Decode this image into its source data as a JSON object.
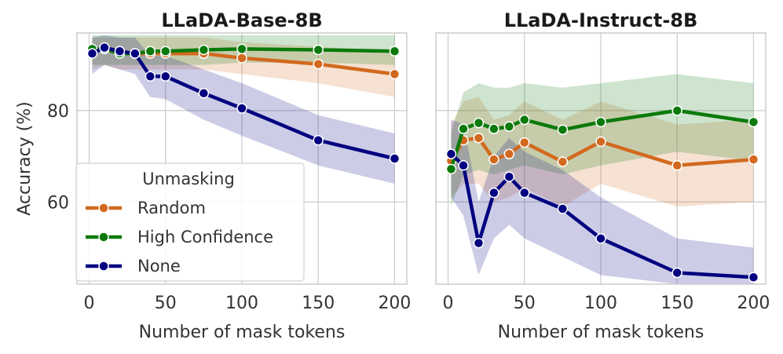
{
  "chart_data": [
    {
      "type": "line",
      "title": "LLaDA-Base-8B",
      "xlabel": "Number of mask tokens",
      "ylabel": "Accuracy (%)",
      "xlim": [
        -8,
        208
      ],
      "ylim": [
        42,
        97
      ],
      "xticks": [
        0,
        50,
        100,
        150,
        200
      ],
      "xtick_labels": [
        "0",
        "50",
        "100",
        "150",
        "200"
      ],
      "yticks": [
        60,
        80
      ],
      "ytick_labels": [
        "60",
        "80"
      ],
      "grid": true,
      "legend": {
        "title": "Unmasking",
        "placement": "lower-left",
        "entries": [
          "Random",
          "High Confidence",
          "None"
        ]
      },
      "x": [
        2,
        10,
        20,
        30,
        40,
        50,
        75,
        100,
        150,
        200
      ],
      "series": [
        {
          "name": "Random",
          "color": "#d2691e",
          "values": [
            93,
            93.5,
            92.5,
            92.5,
            92.5,
            92.5,
            92.5,
            91.5,
            90.2,
            88
          ],
          "lower": [
            89,
            90,
            89,
            89,
            89,
            89,
            89,
            88,
            86,
            83
          ],
          "upper": [
            96,
            96,
            96,
            96,
            96,
            96,
            96,
            95,
            94,
            93
          ]
        },
        {
          "name": "High Confidence",
          "color": "#0b7a0b",
          "values": [
            93.5,
            93.5,
            92.5,
            92.5,
            93,
            93,
            93.3,
            93.5,
            93.3,
            93
          ],
          "lower": [
            90,
            90,
            90,
            90,
            90,
            90,
            90,
            90.5,
            90.5,
            90
          ],
          "upper": [
            96.5,
            96.5,
            96.5,
            96.5,
            96.5,
            96.5,
            96.5,
            96.5,
            96.5,
            96.5
          ]
        },
        {
          "name": "None",
          "color": "#000080",
          "values": [
            92.5,
            93.8,
            93,
            92.5,
            87.5,
            87.5,
            83.8,
            80.5,
            73.5,
            69.5
          ],
          "lower": [
            88,
            90,
            89,
            88,
            83,
            82.5,
            78,
            74.5,
            68,
            64
          ],
          "upper": [
            96,
            96.5,
            96,
            96,
            92,
            92,
            89,
            86,
            79,
            75
          ]
        }
      ]
    },
    {
      "type": "line",
      "title": "LLaDA-Instruct-8B",
      "xlabel": "Number of mask tokens",
      "ylabel": "",
      "xlim": [
        -8,
        208
      ],
      "ylim": [
        42,
        97
      ],
      "xticks": [
        0,
        50,
        100,
        150,
        200
      ],
      "xtick_labels": [
        "0",
        "50",
        "100",
        "150",
        "200"
      ],
      "yticks": [
        60,
        80
      ],
      "ytick_labels": [],
      "grid": true,
      "x": [
        2,
        10,
        20,
        30,
        40,
        50,
        75,
        100,
        150,
        200
      ],
      "series": [
        {
          "name": "Random",
          "color": "#d2691e",
          "values": [
            69,
            73.5,
            74,
            69.3,
            70.5,
            73,
            68.8,
            73.2,
            68,
            69.3
          ],
          "lower": [
            61,
            64,
            64,
            60,
            61,
            63,
            59,
            64,
            59,
            60
          ],
          "upper": [
            77,
            82,
            83,
            78,
            79,
            82,
            78,
            82,
            77,
            78
          ]
        },
        {
          "name": "High Confidence",
          "color": "#0b7a0b",
          "values": [
            67.2,
            76,
            77.3,
            76,
            76.5,
            78,
            75.8,
            77.5,
            80,
            77.5
          ],
          "lower": [
            59,
            66,
            67,
            66,
            67,
            68,
            66,
            68,
            71,
            69
          ],
          "upper": [
            75,
            84,
            86,
            85,
            85,
            86,
            85,
            86,
            88,
            86
          ]
        },
        {
          "name": "None",
          "color": "#000080",
          "values": [
            70.5,
            68,
            51,
            62,
            65.5,
            62,
            58.5,
            52,
            44.5,
            43.5
          ],
          "lower": [
            61,
            57,
            44,
            52,
            55,
            52,
            48,
            44,
            42,
            42
          ],
          "upper": [
            78,
            77,
            60,
            70,
            74,
            71,
            67,
            61,
            52,
            50
          ]
        }
      ]
    }
  ]
}
